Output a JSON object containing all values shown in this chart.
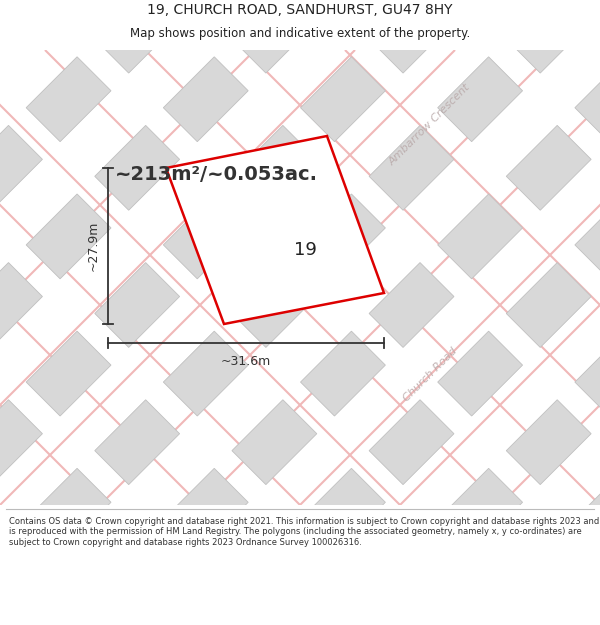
{
  "title": "19, CHURCH ROAD, SANDHURST, GU47 8HY",
  "subtitle": "Map shows position and indicative extent of the property.",
  "area_label": "~213m²/~0.053ac.",
  "property_number": "19",
  "dim_width": "~31.6m",
  "dim_height": "~27.9m",
  "footer": "Contains OS data © Crown copyright and database right 2021. This information is subject to Crown copyright and database rights 2023 and is reproduced with the permission of HM Land Registry. The polygons (including the associated geometry, namely x, y co-ordinates) are subject to Crown copyright and database rights 2023 Ordnance Survey 100026316.",
  "map_bg": "#f7f5f5",
  "plot_outline": "#dd0000",
  "plot_fill": "#ffffff",
  "building_fill": "#d8d8d8",
  "building_stroke": "#c0c0c0",
  "road_color": "#f0b8b8",
  "road_label_color": "#b8a8a8",
  "title_color": "#222222",
  "footer_color": "#333333",
  "dim_color": "#333333",
  "area_label_color": "#333333"
}
